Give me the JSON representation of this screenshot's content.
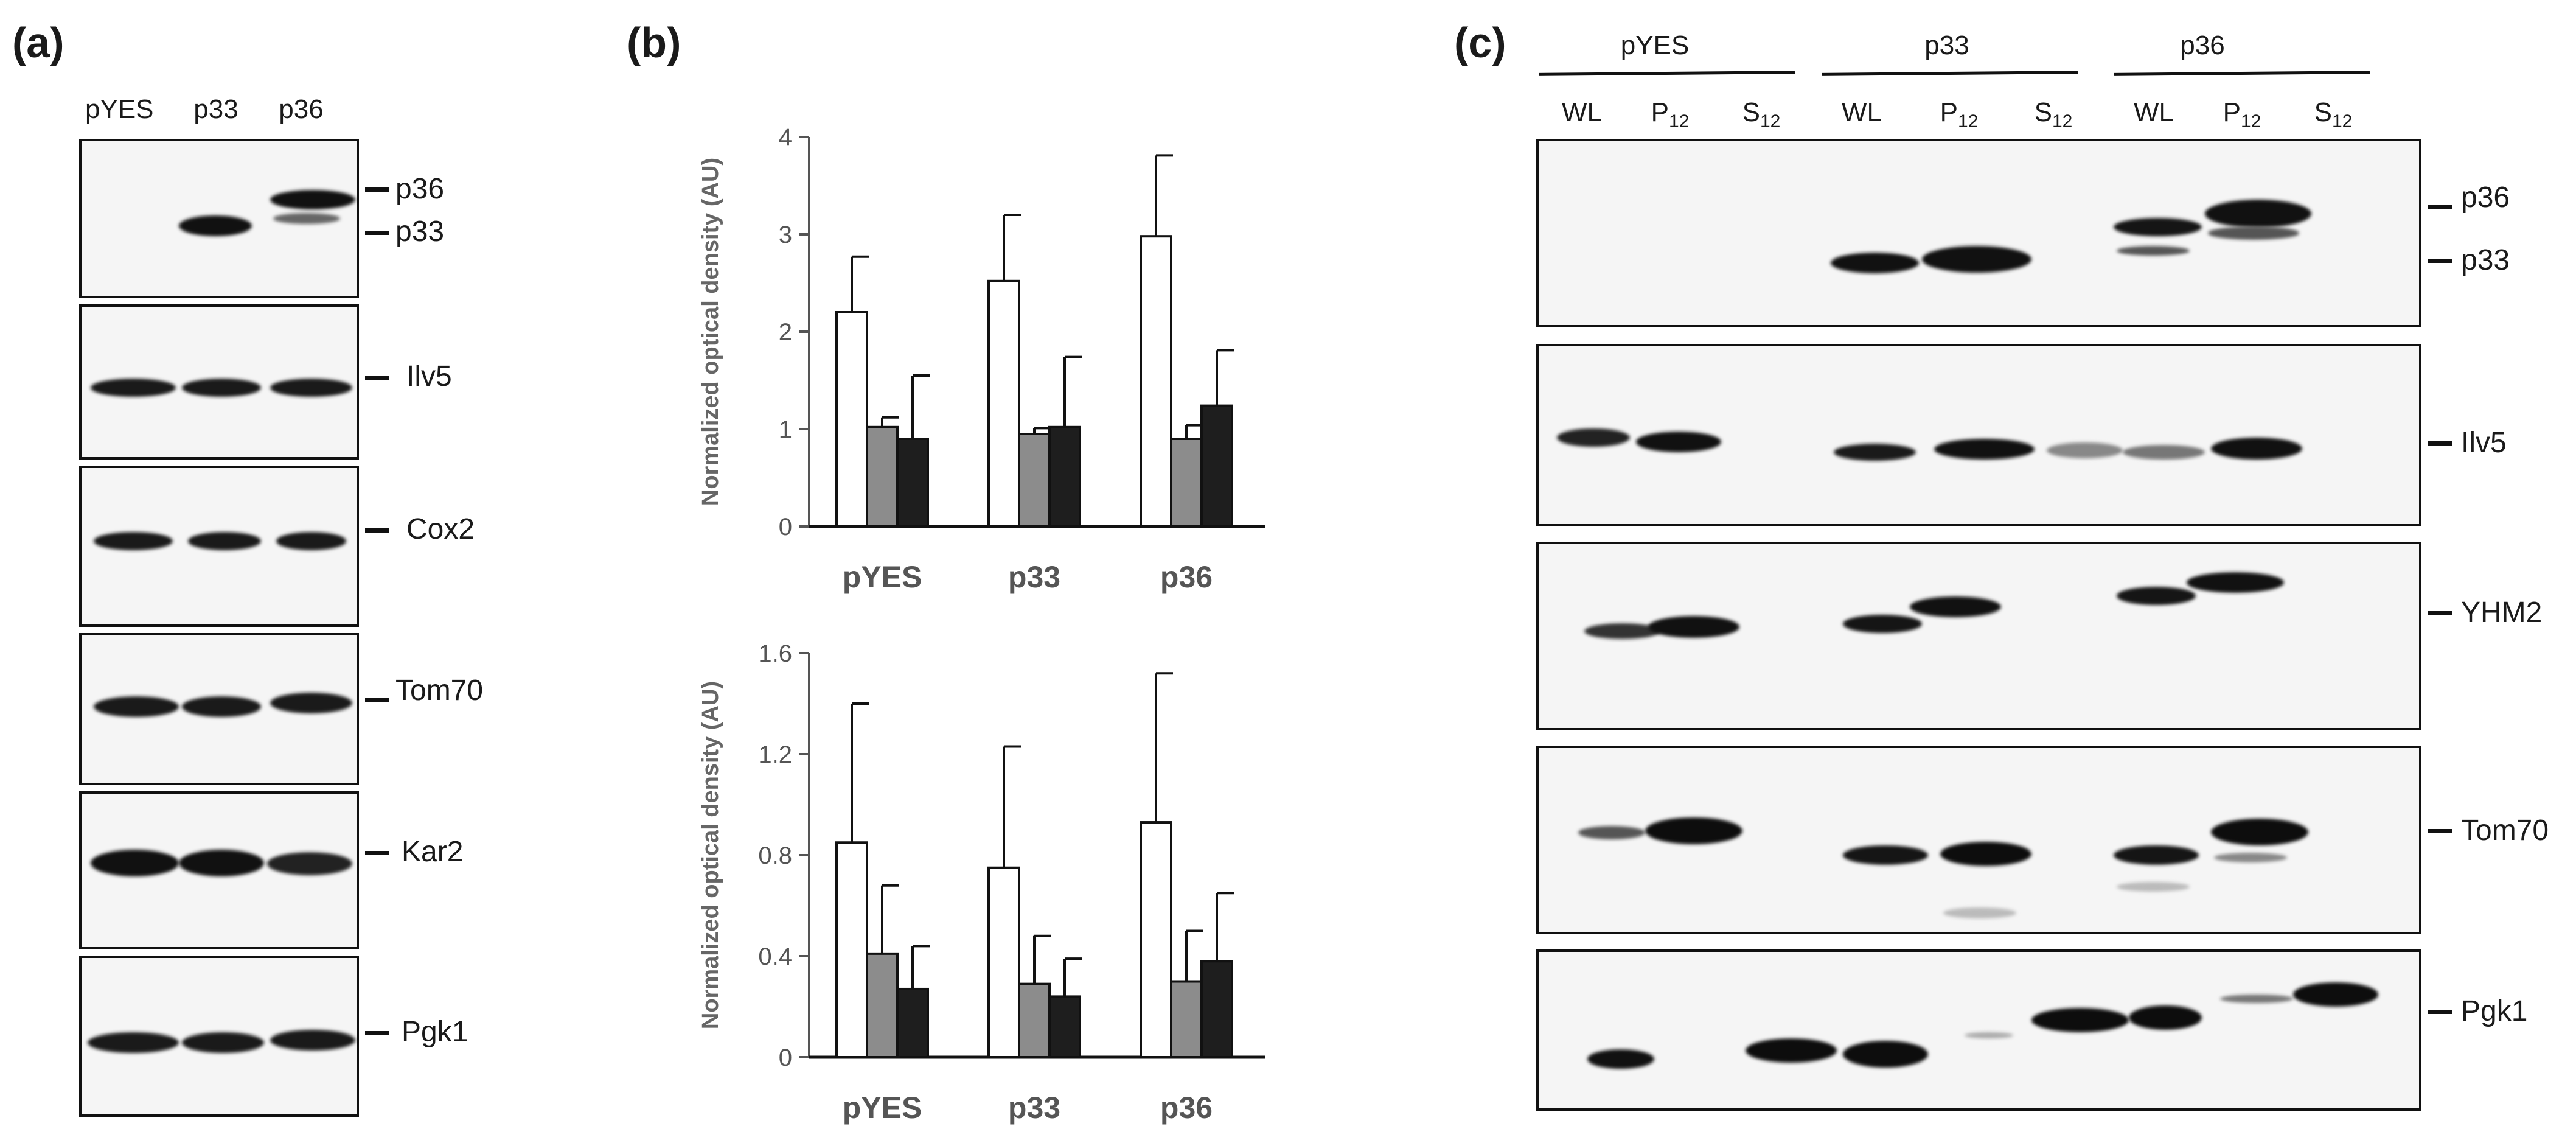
{
  "panel_a": {
    "letter": "(a)",
    "lanes": [
      "pYES",
      "p33",
      "p36"
    ],
    "blots": [
      {
        "markers": [
          "p36",
          "p33"
        ]
      },
      {
        "markers": [
          "Ilv5"
        ]
      },
      {
        "markers": [
          "Cox2"
        ]
      },
      {
        "markers": [
          "Tom70"
        ]
      },
      {
        "markers": [
          "Kar2"
        ]
      },
      {
        "markers": [
          "Pgk1"
        ]
      }
    ]
  },
  "panel_b": {
    "letter": "(b)"
  },
  "panel_c": {
    "letter": "(c)",
    "groups": [
      "pYES",
      "p33",
      "p36"
    ],
    "fractions": [
      {
        "main": "WL",
        "sub": ""
      },
      {
        "main": "P",
        "sub": "12"
      },
      {
        "main": "S",
        "sub": "12"
      }
    ],
    "blots": [
      {
        "markers": [
          "p36",
          "p33"
        ]
      },
      {
        "markers": [
          "Ilv5"
        ]
      },
      {
        "markers": [
          "YHM2"
        ]
      },
      {
        "markers": [
          "Tom70"
        ]
      },
      {
        "markers": [
          "Pgk1"
        ]
      }
    ]
  },
  "chart_data": [
    {
      "type": "bar",
      "categories": [
        "pYES",
        "p33",
        "p36"
      ],
      "ylabel": "Normalized optical density (AU)",
      "ylim": [
        0,
        4
      ],
      "yticks": [
        "0",
        "1",
        "2",
        "3",
        "4"
      ],
      "series": [
        {
          "values": [
            2.2,
            2.52,
            2.98
          ],
          "errors": [
            0.57,
            0.68,
            0.83
          ],
          "color": "#ffffff"
        },
        {
          "values": [
            1.02,
            0.95,
            0.9
          ],
          "errors": [
            0.1,
            0.06,
            0.14
          ],
          "color": "#8c8c8c"
        },
        {
          "values": [
            0.9,
            1.02,
            1.24
          ],
          "errors": [
            0.65,
            0.72,
            0.57
          ],
          "color": "#1e1e1e"
        }
      ]
    },
    {
      "type": "bar",
      "categories": [
        "pYES",
        "p33",
        "p36"
      ],
      "ylabel": "Normalized optical density (AU)",
      "ylim": [
        0,
        1.6
      ],
      "yticks": [
        "0",
        "0.4",
        "0.8",
        "1.2",
        "1.6"
      ],
      "series": [
        {
          "values": [
            0.85,
            0.75,
            0.93
          ],
          "errors": [
            0.55,
            0.48,
            0.59
          ],
          "color": "#ffffff"
        },
        {
          "values": [
            0.41,
            0.29,
            0.3
          ],
          "errors": [
            0.27,
            0.19,
            0.2
          ],
          "color": "#8c8c8c"
        },
        {
          "values": [
            0.27,
            0.24,
            0.38
          ],
          "errors": [
            0.17,
            0.15,
            0.27
          ],
          "color": "#1e1e1e"
        }
      ]
    }
  ]
}
